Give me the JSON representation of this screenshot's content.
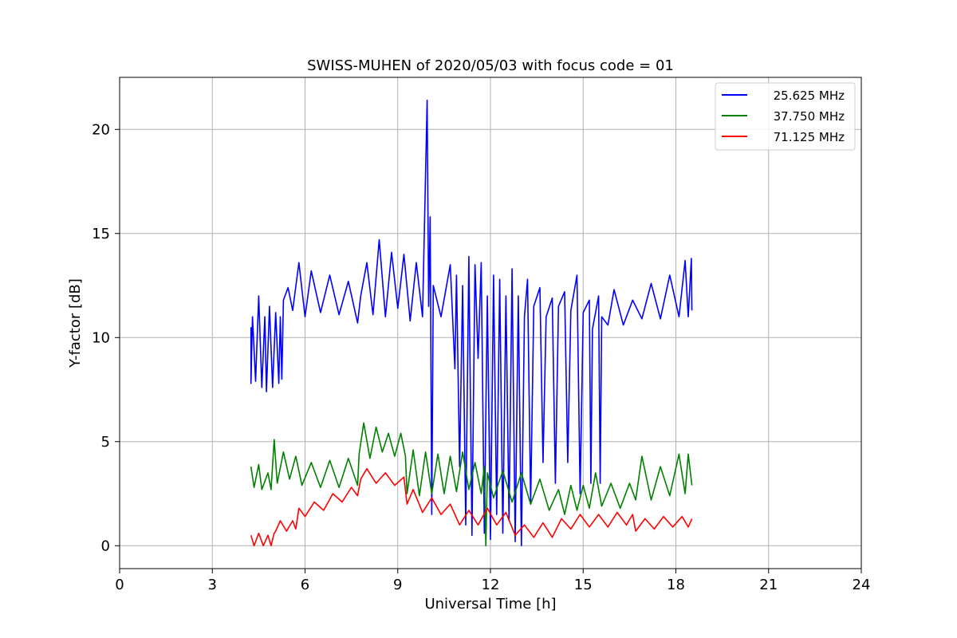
{
  "chart_data": {
    "type": "line",
    "title": "SWISS-MUHEN of 2020/05/03 with focus code = 01",
    "xlabel": "Universal Time [h]",
    "ylabel": "Y-factor [dB]",
    "xlim": [
      0,
      24
    ],
    "ylim": [
      -1.1,
      22.5
    ],
    "xticks": [
      0,
      3,
      6,
      9,
      12,
      15,
      18,
      21,
      24
    ],
    "xtick_labels": [
      "0",
      "3",
      "6",
      "9",
      "12",
      "15",
      "18",
      "21",
      "24"
    ],
    "yticks": [
      0,
      5,
      10,
      15,
      20
    ],
    "ytick_labels": [
      "0",
      "5",
      "10",
      "15",
      "20"
    ],
    "grid": true,
    "legend_position": "top-right",
    "series": [
      {
        "name": "25.625 MHz",
        "color": "#0000ff",
        "points": [
          [
            4.25,
            10.5
          ],
          [
            4.25,
            7.8
          ],
          [
            4.3,
            11.0
          ],
          [
            4.4,
            7.9
          ],
          [
            4.5,
            12.0
          ],
          [
            4.6,
            7.6
          ],
          [
            4.7,
            11.0
          ],
          [
            4.75,
            7.4
          ],
          [
            4.85,
            11.5
          ],
          [
            4.95,
            7.6
          ],
          [
            5.05,
            11.2
          ],
          [
            5.15,
            7.8
          ],
          [
            5.2,
            11.0
          ],
          [
            5.25,
            8.0
          ],
          [
            5.3,
            11.8
          ],
          [
            5.45,
            12.4
          ],
          [
            5.6,
            11.3
          ],
          [
            5.8,
            13.6
          ],
          [
            6.0,
            11.0
          ],
          [
            6.2,
            13.2
          ],
          [
            6.5,
            11.2
          ],
          [
            6.8,
            13.0
          ],
          [
            7.1,
            11.1
          ],
          [
            7.4,
            12.7
          ],
          [
            7.7,
            10.7
          ],
          [
            7.8,
            12.0
          ],
          [
            8.0,
            13.6
          ],
          [
            8.2,
            11.1
          ],
          [
            8.4,
            14.7
          ],
          [
            8.6,
            11.0
          ],
          [
            8.8,
            14.1
          ],
          [
            9.0,
            11.4
          ],
          [
            9.2,
            14.0
          ],
          [
            9.4,
            10.8
          ],
          [
            9.6,
            13.6
          ],
          [
            9.8,
            11.0
          ],
          [
            9.95,
            21.4
          ],
          [
            10.0,
            11.5
          ],
          [
            10.05,
            15.8
          ],
          [
            10.1,
            1.5
          ],
          [
            10.15,
            12.5
          ],
          [
            10.4,
            11.0
          ],
          [
            10.7,
            13.5
          ],
          [
            10.85,
            8.5
          ],
          [
            10.9,
            13.0
          ],
          [
            11.0,
            3.8
          ],
          [
            11.1,
            12.5
          ],
          [
            11.2,
            1.0
          ],
          [
            11.3,
            13.9
          ],
          [
            11.4,
            0.5
          ],
          [
            11.5,
            13.5
          ],
          [
            11.6,
            9.0
          ],
          [
            11.7,
            13.6
          ],
          [
            11.8,
            0.6
          ],
          [
            11.9,
            12.0
          ],
          [
            12.0,
            0.3
          ],
          [
            12.1,
            13.0
          ],
          [
            12.2,
            1.5
          ],
          [
            12.3,
            12.8
          ],
          [
            12.4,
            0.6
          ],
          [
            12.5,
            12.0
          ],
          [
            12.6,
            1.2
          ],
          [
            12.7,
            13.3
          ],
          [
            12.8,
            0.2
          ],
          [
            12.9,
            12.0
          ],
          [
            13.0,
            0.0
          ],
          [
            13.1,
            11.0
          ],
          [
            13.2,
            12.8
          ],
          [
            13.3,
            2.0
          ],
          [
            13.4,
            11.5
          ],
          [
            13.6,
            12.4
          ],
          [
            13.7,
            4.0
          ],
          [
            13.8,
            11.0
          ],
          [
            14.0,
            11.9
          ],
          [
            14.1,
            3.0
          ],
          [
            14.2,
            11.5
          ],
          [
            14.4,
            12.2
          ],
          [
            14.5,
            4.0
          ],
          [
            14.6,
            11.3
          ],
          [
            14.8,
            13.0
          ],
          [
            14.9,
            2.5
          ],
          [
            15.0,
            11.2
          ],
          [
            15.2,
            11.8
          ],
          [
            15.25,
            3.0
          ],
          [
            15.3,
            10.4
          ],
          [
            15.5,
            12.0
          ],
          [
            15.55,
            3.0
          ],
          [
            15.6,
            11.0
          ],
          [
            15.8,
            10.6
          ],
          [
            16.0,
            12.3
          ],
          [
            16.3,
            10.6
          ],
          [
            16.6,
            11.8
          ],
          [
            16.9,
            10.9
          ],
          [
            17.2,
            12.6
          ],
          [
            17.5,
            10.9
          ],
          [
            17.8,
            13.0
          ],
          [
            18.1,
            11.0
          ],
          [
            18.3,
            13.7
          ],
          [
            18.4,
            11.0
          ],
          [
            18.5,
            13.8
          ],
          [
            18.52,
            11.3
          ]
        ]
      },
      {
        "name": "37.750 MHz",
        "color": "#008000",
        "points": [
          [
            4.25,
            3.8
          ],
          [
            4.35,
            2.8
          ],
          [
            4.5,
            3.9
          ],
          [
            4.6,
            2.7
          ],
          [
            4.8,
            3.5
          ],
          [
            4.9,
            2.7
          ],
          [
            5.0,
            5.1
          ],
          [
            5.1,
            3.0
          ],
          [
            5.3,
            4.5
          ],
          [
            5.5,
            3.2
          ],
          [
            5.7,
            4.3
          ],
          [
            5.9,
            2.9
          ],
          [
            6.2,
            4.0
          ],
          [
            6.5,
            2.8
          ],
          [
            6.8,
            4.1
          ],
          [
            7.1,
            2.8
          ],
          [
            7.4,
            4.2
          ],
          [
            7.7,
            2.9
          ],
          [
            7.75,
            4.4
          ],
          [
            7.9,
            5.9
          ],
          [
            8.1,
            4.2
          ],
          [
            8.3,
            5.7
          ],
          [
            8.5,
            4.5
          ],
          [
            8.7,
            5.4
          ],
          [
            8.9,
            4.3
          ],
          [
            9.1,
            5.4
          ],
          [
            9.25,
            4.3
          ],
          [
            9.3,
            2.5
          ],
          [
            9.5,
            4.6
          ],
          [
            9.7,
            2.4
          ],
          [
            9.9,
            4.5
          ],
          [
            10.1,
            2.5
          ],
          [
            10.3,
            4.4
          ],
          [
            10.5,
            2.5
          ],
          [
            10.7,
            4.3
          ],
          [
            10.9,
            2.6
          ],
          [
            11.1,
            4.5
          ],
          [
            11.3,
            2.7
          ],
          [
            11.5,
            4.0
          ],
          [
            11.7,
            2.5
          ],
          [
            11.8,
            3.8
          ],
          [
            11.85,
            0.0
          ],
          [
            11.9,
            3.5
          ],
          [
            12.1,
            2.3
          ],
          [
            12.4,
            3.6
          ],
          [
            12.7,
            2.1
          ],
          [
            13.0,
            3.5
          ],
          [
            13.3,
            2.0
          ],
          [
            13.6,
            3.2
          ],
          [
            13.9,
            1.7
          ],
          [
            14.2,
            2.7
          ],
          [
            14.4,
            1.5
          ],
          [
            14.6,
            2.9
          ],
          [
            14.8,
            1.7
          ],
          [
            15.0,
            2.9
          ],
          [
            15.2,
            1.8
          ],
          [
            15.4,
            3.5
          ],
          [
            15.6,
            1.9
          ],
          [
            15.9,
            3.0
          ],
          [
            16.2,
            1.8
          ],
          [
            16.5,
            3.0
          ],
          [
            16.7,
            2.2
          ],
          [
            16.9,
            4.3
          ],
          [
            17.2,
            2.2
          ],
          [
            17.5,
            3.8
          ],
          [
            17.8,
            2.4
          ],
          [
            18.1,
            4.4
          ],
          [
            18.3,
            2.5
          ],
          [
            18.4,
            4.4
          ],
          [
            18.52,
            2.9
          ]
        ]
      },
      {
        "name": "71.125 MHz",
        "color": "#ff0000",
        "points": [
          [
            4.25,
            0.5
          ],
          [
            4.35,
            0.0
          ],
          [
            4.5,
            0.6
          ],
          [
            4.65,
            0.0
          ],
          [
            4.8,
            0.5
          ],
          [
            4.9,
            0.0
          ],
          [
            5.0,
            0.6
          ],
          [
            5.05,
            0.7
          ],
          [
            5.2,
            1.2
          ],
          [
            5.4,
            0.7
          ],
          [
            5.6,
            1.2
          ],
          [
            5.7,
            0.8
          ],
          [
            5.8,
            1.8
          ],
          [
            6.0,
            1.4
          ],
          [
            6.3,
            2.1
          ],
          [
            6.6,
            1.7
          ],
          [
            6.9,
            2.5
          ],
          [
            7.2,
            2.1
          ],
          [
            7.5,
            2.8
          ],
          [
            7.7,
            2.4
          ],
          [
            7.8,
            3.2
          ],
          [
            8.0,
            3.7
          ],
          [
            8.3,
            3.0
          ],
          [
            8.6,
            3.5
          ],
          [
            8.9,
            2.9
          ],
          [
            9.2,
            3.3
          ],
          [
            9.3,
            2.0
          ],
          [
            9.5,
            2.7
          ],
          [
            9.8,
            1.6
          ],
          [
            10.1,
            2.3
          ],
          [
            10.4,
            1.5
          ],
          [
            10.7,
            2.0
          ],
          [
            11.0,
            1.0
          ],
          [
            11.3,
            1.7
          ],
          [
            11.6,
            1.0
          ],
          [
            11.9,
            1.8
          ],
          [
            12.2,
            1.0
          ],
          [
            12.5,
            1.6
          ],
          [
            12.8,
            0.5
          ],
          [
            13.1,
            1.0
          ],
          [
            13.4,
            0.4
          ],
          [
            13.7,
            1.1
          ],
          [
            14.0,
            0.4
          ],
          [
            14.3,
            1.3
          ],
          [
            14.6,
            0.8
          ],
          [
            14.9,
            1.5
          ],
          [
            15.2,
            0.9
          ],
          [
            15.5,
            1.5
          ],
          [
            15.8,
            0.9
          ],
          [
            16.1,
            1.6
          ],
          [
            16.4,
            1.0
          ],
          [
            16.6,
            1.5
          ],
          [
            16.7,
            0.7
          ],
          [
            17.0,
            1.3
          ],
          [
            17.3,
            0.8
          ],
          [
            17.6,
            1.4
          ],
          [
            17.9,
            0.9
          ],
          [
            18.2,
            1.4
          ],
          [
            18.4,
            0.9
          ],
          [
            18.52,
            1.3
          ]
        ]
      }
    ]
  }
}
